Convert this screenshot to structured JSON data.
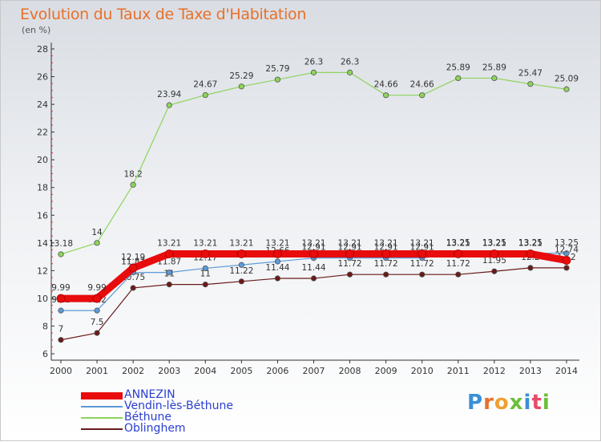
{
  "title": "Evolution du Taux de Taxe d'Habitation",
  "unit": "(en %)",
  "logo": {
    "text": "Proxiti",
    "colors": [
      "#3a8fd8",
      "#e8702a",
      "#f0a030",
      "#6bbf3a",
      "#3a8fd8",
      "#e84a6a",
      "#6bbf3a"
    ]
  },
  "chart_data": {
    "type": "line",
    "x": [
      "2000",
      "2001",
      "2002",
      "2003",
      "2004",
      "2005",
      "2006",
      "2007",
      "2008",
      "2009",
      "2010",
      "2011",
      "2012",
      "2013",
      "2014"
    ],
    "ylim": [
      6,
      28
    ],
    "yticks": [
      6,
      8,
      10,
      12,
      14,
      16,
      18,
      20,
      22,
      24,
      26,
      28
    ],
    "grid": false,
    "legend_position": "bottom-left",
    "series": [
      {
        "name": "Béthune",
        "color": "#8ed45c",
        "width": 1.2,
        "values": [
          13.18,
          14,
          18.2,
          23.94,
          24.67,
          25.29,
          25.79,
          26.3,
          26.3,
          24.66,
          24.66,
          25.89,
          25.89,
          25.47,
          25.09
        ],
        "labels": [
          "13.18",
          "14",
          "18.2",
          "23.94",
          "24.67",
          "25.29",
          "25.79",
          "26.3",
          "26.3",
          "24.66",
          "24.66",
          "25.89",
          "25.89",
          "25.47",
          "25.09"
        ]
      },
      {
        "name": "Oblinghem",
        "color": "#6a1a1a",
        "width": 1.2,
        "values": [
          7,
          7.5,
          10.75,
          11,
          11,
          11.22,
          11.44,
          11.44,
          11.72,
          11.72,
          11.72,
          11.72,
          11.95,
          12.2,
          12.2
        ],
        "labels": [
          "7",
          "7.5",
          "10.75",
          "11",
          "11",
          "11.22",
          "11.44",
          "11.44",
          "11.72",
          "11.72",
          "11.72",
          "11.72",
          "11.95",
          "12.2",
          "12.2"
        ]
      },
      {
        "name": "Vendin-lès-Béthune",
        "color": "#5a9ad8",
        "width": 1.2,
        "values": [
          9.12,
          9.12,
          11.87,
          11.87,
          12.17,
          12.41,
          12.66,
          12.91,
          12.91,
          12.91,
          12.91,
          13.25,
          13.25,
          13.25,
          13.25
        ],
        "labels": [
          "9.12",
          "9.12",
          "11.87",
          "11.87",
          "12.17",
          "12.41",
          "12.66",
          "12.91",
          "12.91",
          "12.91",
          "12.91",
          "13.25",
          "13.25",
          "13.25",
          "13.25"
        ]
      },
      {
        "name": "ANNEZIN",
        "color": "#e80c0c",
        "width": 9,
        "values": [
          9.99,
          9.99,
          12.19,
          13.21,
          13.21,
          13.21,
          13.21,
          13.21,
          13.21,
          13.21,
          13.21,
          13.21,
          13.21,
          13.21,
          12.74
        ],
        "labels": [
          "9.99",
          "9.99",
          "12.19",
          "13.21",
          "13.21",
          "13.21",
          "13.21",
          "13.21",
          "13.21",
          "13.21",
          "13.21",
          "13.21",
          "13.21",
          "13.21",
          "12.74"
        ]
      }
    ],
    "legend_order": [
      "ANNEZIN",
      "Vendin-lès-Béthune",
      "Béthune",
      "Oblinghem"
    ]
  }
}
